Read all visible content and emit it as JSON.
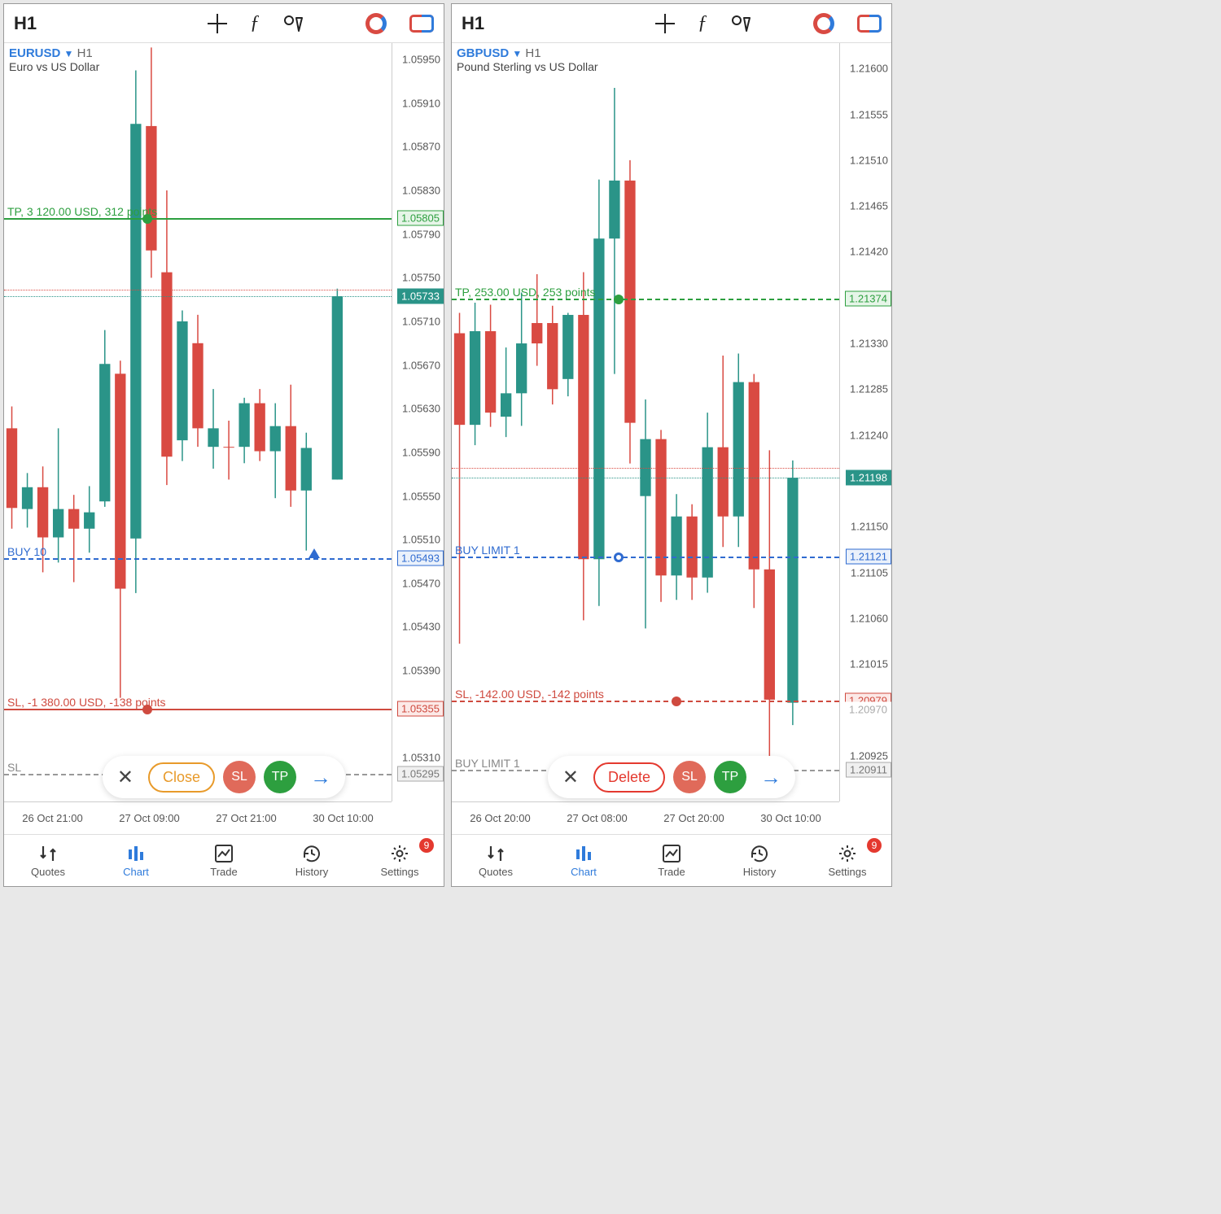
{
  "panels": [
    {
      "timeframe": "H1",
      "symbol": "EURUSD",
      "symbol_desc": "Euro vs US Dollar",
      "y_min": 1.0527,
      "y_max": 1.05965,
      "y_ticks": [
        1.0595,
        1.0591,
        1.0587,
        1.0583,
        1.0579,
        1.0575,
        1.0571,
        1.0567,
        1.0563,
        1.0559,
        1.0555,
        1.0551,
        1.0547,
        1.0543,
        1.0539,
        1.0531
      ],
      "y_tick_fmt": 5,
      "x_labels": [
        "26 Oct 21:00",
        "27 Oct 09:00",
        "27 Oct 21:00",
        "30 Oct 10:00"
      ],
      "price_labels": [
        {
          "v": 1.05805,
          "text": "1.05805",
          "bg": "#e6f5e8",
          "fg": "#2d9f3f",
          "bd": "#2d9f3f"
        },
        {
          "v": 1.05733,
          "text": "1.05733",
          "bg": "#2a9488",
          "fg": "#fff",
          "bd": "#2a9488"
        },
        {
          "v": 1.05493,
          "text": "1.05493",
          "bg": "#eaf1fb",
          "fg": "#2f6bd0",
          "bd": "#2f6bd0"
        },
        {
          "v": 1.05355,
          "text": "1.05355",
          "bg": "#fce9e7",
          "fg": "#cf4a3f",
          "bd": "#cf4a3f"
        },
        {
          "v": 1.05295,
          "text": "1.05295",
          "bg": "#f0f0f0",
          "fg": "#777",
          "bd": "#aaa"
        }
      ],
      "lines": [
        {
          "v": 1.05805,
          "style": "solid",
          "color": "#2d9f3f",
          "label": "TP, 3 120.00 USD, 312 points",
          "label_color": "#2d9f3f",
          "knob": true,
          "knob_fill": "#2d9f3f",
          "knob_x": 0.37
        },
        {
          "v": 1.05739,
          "style": "dot",
          "color": "#d94a42"
        },
        {
          "v": 1.05733,
          "style": "dot",
          "color": "#2a9488"
        },
        {
          "v": 1.05493,
          "style": "dash",
          "color": "#2f6bd0",
          "label": "BUY 10",
          "label_color": "#2f6bd0",
          "arrow": true,
          "arrow_x": 0.8
        },
        {
          "v": 1.05355,
          "style": "solid",
          "color": "#cf4a3f",
          "label": "SL, -1 380.00 USD, -138 points",
          "label_color": "#cf4a3f",
          "knob": true,
          "knob_fill": "#cf4a3f",
          "knob_x": 0.37
        },
        {
          "v": 1.05295,
          "style": "dash",
          "color": "#999",
          "label": "SL",
          "label_color": "#888"
        }
      ],
      "candles": [
        {
          "x": 0.02,
          "o": 1.05612,
          "h": 1.05632,
          "l": 1.0552,
          "c": 1.05539,
          "up": false
        },
        {
          "x": 0.06,
          "o": 1.05538,
          "h": 1.05571,
          "l": 1.05521,
          "c": 1.05558,
          "up": true
        },
        {
          "x": 0.1,
          "o": 1.05558,
          "h": 1.05577,
          "l": 1.0548,
          "c": 1.05512,
          "up": false
        },
        {
          "x": 0.14,
          "o": 1.05512,
          "h": 1.05612,
          "l": 1.05489,
          "c": 1.05538,
          "up": true
        },
        {
          "x": 0.18,
          "o": 1.05538,
          "h": 1.05551,
          "l": 1.05471,
          "c": 1.0552,
          "up": false
        },
        {
          "x": 0.22,
          "o": 1.0552,
          "h": 1.05559,
          "l": 1.05498,
          "c": 1.05535,
          "up": true
        },
        {
          "x": 0.26,
          "o": 1.05545,
          "h": 1.05702,
          "l": 1.0554,
          "c": 1.05671,
          "up": true
        },
        {
          "x": 0.3,
          "o": 1.05662,
          "h": 1.05674,
          "l": 1.05365,
          "c": 1.05465,
          "up": false
        },
        {
          "x": 0.34,
          "o": 1.05511,
          "h": 1.0594,
          "l": 1.05461,
          "c": 1.05891,
          "up": true
        },
        {
          "x": 0.38,
          "o": 1.05889,
          "h": 1.05961,
          "l": 1.0575,
          "c": 1.05775,
          "up": false
        },
        {
          "x": 0.42,
          "o": 1.05755,
          "h": 1.0583,
          "l": 1.0556,
          "c": 1.05586,
          "up": false
        },
        {
          "x": 0.46,
          "o": 1.05601,
          "h": 1.0572,
          "l": 1.05582,
          "c": 1.0571,
          "up": true
        },
        {
          "x": 0.5,
          "o": 1.0569,
          "h": 1.05716,
          "l": 1.05595,
          "c": 1.05612,
          "up": false
        },
        {
          "x": 0.54,
          "o": 1.05612,
          "h": 1.05648,
          "l": 1.05575,
          "c": 1.05595,
          "up": true
        },
        {
          "x": 0.58,
          "o": 1.05595,
          "h": 1.05619,
          "l": 1.05565,
          "c": 1.05595,
          "up": false
        },
        {
          "x": 0.62,
          "o": 1.05595,
          "h": 1.0564,
          "l": 1.0558,
          "c": 1.05635,
          "up": true
        },
        {
          "x": 0.66,
          "o": 1.05635,
          "h": 1.05648,
          "l": 1.05582,
          "c": 1.05591,
          "up": false
        },
        {
          "x": 0.7,
          "o": 1.05591,
          "h": 1.05635,
          "l": 1.05548,
          "c": 1.05614,
          "up": true
        },
        {
          "x": 0.74,
          "o": 1.05614,
          "h": 1.05652,
          "l": 1.0554,
          "c": 1.05555,
          "up": false
        },
        {
          "x": 0.78,
          "o": 1.05555,
          "h": 1.05608,
          "l": 1.055,
          "c": 1.05594,
          "up": true
        },
        {
          "x": 0.86,
          "o": 1.05565,
          "h": 1.0574,
          "l": 1.05565,
          "c": 1.05733,
          "up": true
        }
      ],
      "action": {
        "main": "Close",
        "main_color": "#e89a2a"
      },
      "nav_badge": "9"
    },
    {
      "timeframe": "H1",
      "symbol": "GBPUSD",
      "symbol_desc": "Pound Sterling vs US Dollar",
      "y_min": 1.2088,
      "y_max": 1.21625,
      "y_ticks": [
        1.216,
        1.21555,
        1.2151,
        1.21465,
        1.2142,
        1.2133,
        1.21285,
        1.2124,
        1.2115,
        1.21105,
        1.2106,
        1.21015,
        1.20925
      ],
      "y_tick_fmt": 5,
      "x_labels": [
        "26 Oct 20:00",
        "27 Oct 08:00",
        "27 Oct 20:00",
        "30 Oct 10:00"
      ],
      "price_labels": [
        {
          "v": 1.21374,
          "text": "1.21374",
          "bg": "#e6f5e8",
          "fg": "#2d9f3f",
          "bd": "#2d9f3f"
        },
        {
          "v": 1.21198,
          "text": "1.21198",
          "bg": "#2a9488",
          "fg": "#fff",
          "bd": "#2a9488"
        },
        {
          "v": 1.21121,
          "text": "1.21121",
          "bg": "#eaf1fb",
          "fg": "#2f6bd0",
          "bd": "#2f6bd0"
        },
        {
          "v": 1.20979,
          "text": "1.20979",
          "bg": "#fce9e7",
          "fg": "#cf4a3f",
          "bd": "#cf4a3f"
        },
        {
          "v": 1.20911,
          "text": "1.20911",
          "bg": "#f0f0f0",
          "fg": "#777",
          "bd": "#aaa"
        },
        {
          "v": 1.2097,
          "text": "1.20970",
          "bg": "#fff",
          "fg": "#aaa",
          "bd": "transparent"
        }
      ],
      "lines": [
        {
          "v": 1.21374,
          "style": "dash",
          "color": "#2d9f3f",
          "label": "TP, 253.00 USD, 253 points",
          "label_color": "#2d9f3f",
          "knob": true,
          "knob_fill": "#2d9f3f",
          "knob_x": 0.43
        },
        {
          "v": 1.21208,
          "style": "dot",
          "color": "#d94a42"
        },
        {
          "v": 1.21198,
          "style": "dot",
          "color": "#2a9488"
        },
        {
          "v": 1.21121,
          "style": "dash",
          "color": "#2f6bd0",
          "label": "BUY LIMIT 1",
          "label_color": "#2f6bd0",
          "ring": true,
          "ring_x": 0.43
        },
        {
          "v": 1.20979,
          "style": "dash",
          "color": "#cf4a3f",
          "label": "SL, -142.00 USD, -142 points",
          "label_color": "#cf4a3f",
          "knob": true,
          "knob_fill": "#cf4a3f",
          "knob_x": 0.58
        },
        {
          "v": 1.20911,
          "style": "dash",
          "color": "#999",
          "label": "BUY LIMIT 1",
          "label_color": "#888"
        }
      ],
      "candles": [
        {
          "x": 0.02,
          "o": 1.2134,
          "h": 1.2136,
          "l": 1.21035,
          "c": 1.2125,
          "up": false
        },
        {
          "x": 0.06,
          "o": 1.2125,
          "h": 1.2137,
          "l": 1.2123,
          "c": 1.21342,
          "up": true
        },
        {
          "x": 0.1,
          "o": 1.21342,
          "h": 1.21368,
          "l": 1.21248,
          "c": 1.21262,
          "up": false
        },
        {
          "x": 0.14,
          "o": 1.21258,
          "h": 1.21326,
          "l": 1.21238,
          "c": 1.21281,
          "up": true
        },
        {
          "x": 0.18,
          "o": 1.21281,
          "h": 1.2138,
          "l": 1.21249,
          "c": 1.2133,
          "up": true
        },
        {
          "x": 0.22,
          "o": 1.2133,
          "h": 1.21398,
          "l": 1.21308,
          "c": 1.2135,
          "up": false
        },
        {
          "x": 0.26,
          "o": 1.2135,
          "h": 1.21367,
          "l": 1.2127,
          "c": 1.21285,
          "up": false
        },
        {
          "x": 0.3,
          "o": 1.21295,
          "h": 1.2136,
          "l": 1.21278,
          "c": 1.21358,
          "up": true
        },
        {
          "x": 0.34,
          "o": 1.21358,
          "h": 1.214,
          "l": 1.21058,
          "c": 1.21118,
          "up": false
        },
        {
          "x": 0.38,
          "o": 1.21118,
          "h": 1.21491,
          "l": 1.21072,
          "c": 1.21433,
          "up": true
        },
        {
          "x": 0.42,
          "o": 1.21433,
          "h": 1.21581,
          "l": 1.213,
          "c": 1.2149,
          "up": true
        },
        {
          "x": 0.46,
          "o": 1.2149,
          "h": 1.2151,
          "l": 1.21212,
          "c": 1.21252,
          "up": false
        },
        {
          "x": 0.5,
          "o": 1.2118,
          "h": 1.21275,
          "l": 1.2105,
          "c": 1.21236,
          "up": true
        },
        {
          "x": 0.54,
          "o": 1.21236,
          "h": 1.21245,
          "l": 1.21076,
          "c": 1.21102,
          "up": false
        },
        {
          "x": 0.58,
          "o": 1.21102,
          "h": 1.21182,
          "l": 1.21078,
          "c": 1.2116,
          "up": true
        },
        {
          "x": 0.62,
          "o": 1.2116,
          "h": 1.21172,
          "l": 1.21078,
          "c": 1.211,
          "up": false
        },
        {
          "x": 0.66,
          "o": 1.211,
          "h": 1.21262,
          "l": 1.21085,
          "c": 1.21228,
          "up": true
        },
        {
          "x": 0.7,
          "o": 1.21228,
          "h": 1.21318,
          "l": 1.2113,
          "c": 1.2116,
          "up": false
        },
        {
          "x": 0.74,
          "o": 1.2116,
          "h": 1.2132,
          "l": 1.2113,
          "c": 1.21292,
          "up": true
        },
        {
          "x": 0.78,
          "o": 1.21292,
          "h": 1.213,
          "l": 1.2107,
          "c": 1.21108,
          "up": false
        },
        {
          "x": 0.82,
          "o": 1.21108,
          "h": 1.21225,
          "l": 1.20888,
          "c": 1.2098,
          "up": false
        },
        {
          "x": 0.88,
          "o": 1.20977,
          "h": 1.21215,
          "l": 1.20955,
          "c": 1.21198,
          "up": true
        }
      ],
      "action": {
        "main": "Delete",
        "main_color": "#e4392f"
      },
      "nav_badge": "9"
    }
  ],
  "nav": [
    {
      "key": "quotes",
      "label": "Quotes"
    },
    {
      "key": "chart",
      "label": "Chart"
    },
    {
      "key": "trade",
      "label": "Trade"
    },
    {
      "key": "history",
      "label": "History"
    },
    {
      "key": "settings",
      "label": "Settings"
    }
  ],
  "colors": {
    "up": "#2a9488",
    "down": "#d94a42",
    "blue": "#2f7bdb"
  }
}
